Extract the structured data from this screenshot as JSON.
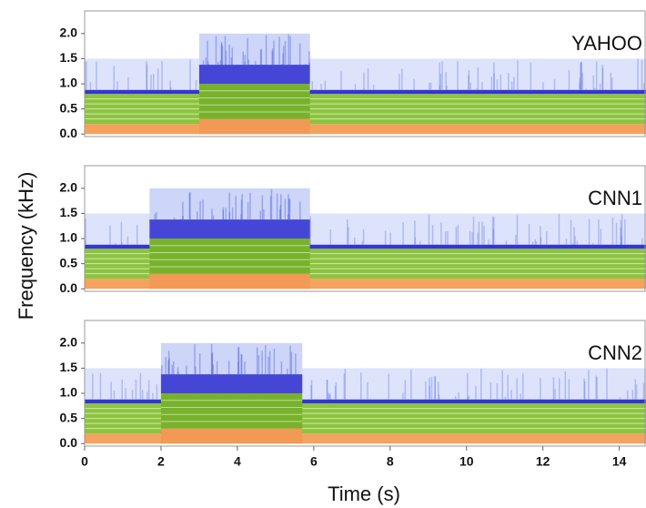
{
  "x_label": "Time (s)",
  "y_label": "Frequency (kHz)",
  "layers": {
    "base": [
      {
        "from": 0,
        "to": 0.2,
        "color": "#f4a25e"
      },
      {
        "from": 0.2,
        "to": 0.8,
        "color": "#8dc43f"
      },
      {
        "from": 0.8,
        "to": 0.88,
        "color": "#3535d4"
      },
      {
        "from": 0.88,
        "to": 1.5,
        "color": "#dde3fb"
      }
    ],
    "active": [
      {
        "from": 0,
        "to": 0.3,
        "color": "#f29a55"
      },
      {
        "from": 0.3,
        "to": 1.0,
        "color": "#78b22c"
      },
      {
        "from": 1.0,
        "to": 1.38,
        "color": "#4646d6"
      },
      {
        "from": 1.38,
        "to": 2.0,
        "color": "#cdd5f8"
      }
    ]
  },
  "chart_data": [
    {
      "type": "spectrogram",
      "label": "YAHOO",
      "segments": [
        [
          3.0,
          5.9
        ]
      ],
      "xlim": [
        0,
        14.7
      ],
      "ylim": [
        -0.05,
        2.45
      ],
      "yticks": [
        {
          "value": 0,
          "label": "0.0"
        },
        {
          "value": 0.5,
          "label": "0.5"
        },
        {
          "value": 1,
          "label": "1.0"
        },
        {
          "value": 1.5,
          "label": "1.5"
        },
        {
          "value": 2,
          "label": "2.0"
        }
      ]
    },
    {
      "type": "spectrogram",
      "label": "CNN1",
      "segments": [
        [
          1.7,
          5.9
        ]
      ],
      "xlim": [
        0,
        14.7
      ],
      "ylim": [
        -0.05,
        2.45
      ],
      "yticks": [
        {
          "value": 0,
          "label": "0.0"
        },
        {
          "value": 0.5,
          "label": "0.5"
        },
        {
          "value": 1,
          "label": "1.0"
        },
        {
          "value": 1.5,
          "label": "1.5"
        },
        {
          "value": 2,
          "label": "2.0"
        }
      ]
    },
    {
      "type": "spectrogram",
      "label": "CNN2",
      "segments": [
        [
          2.0,
          5.7
        ]
      ],
      "xlim": [
        0,
        14.7
      ],
      "ylim": [
        -0.05,
        2.45
      ],
      "xticks": [
        0,
        2,
        4,
        6,
        8,
        10,
        12,
        14
      ],
      "yticks": [
        {
          "value": 0,
          "label": "0.0"
        },
        {
          "value": 0.5,
          "label": "0.5"
        },
        {
          "value": 1,
          "label": "1.0"
        },
        {
          "value": 1.5,
          "label": "1.5"
        },
        {
          "value": 2,
          "label": "2.0"
        }
      ]
    }
  ]
}
